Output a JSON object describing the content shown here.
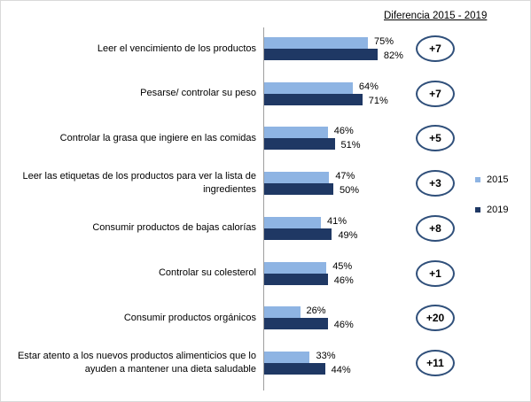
{
  "diff_header": "Diferencia 2015 - 2019",
  "colors": {
    "series_2015": "#8eb4e3",
    "series_2019": "#1f3864",
    "oval_border": "#2f4f7a"
  },
  "legend": [
    "2015",
    "2019"
  ],
  "chart_data": {
    "type": "bar",
    "orientation": "horizontal",
    "categories": [
      "Leer el vencimiento de los productos",
      "Pesarse/ controlar su peso",
      "Controlar la grasa que ingiere en las comidas",
      "Leer las etiquetas  de los productos para ver la lista de ingredientes",
      "Consumir productos de bajas calorías",
      "Controlar su colesterol",
      "Consumir  productos orgánicos",
      "Estar atento a los nuevos productos alimenticios que lo ayuden a mantener una dieta saludable"
    ],
    "series": [
      {
        "name": "2015",
        "values": [
          75,
          64,
          46,
          47,
          41,
          45,
          26,
          33
        ],
        "labels": [
          "75%",
          "64%",
          "46%",
          "47%",
          "41%",
          "45%",
          "26%",
          "33%"
        ]
      },
      {
        "name": "2019",
        "values": [
          82,
          71,
          51,
          50,
          49,
          46,
          46,
          44
        ],
        "labels": [
          "82%",
          "71%",
          "51%",
          "50%",
          "49%",
          "46%",
          "46%",
          "44%"
        ]
      }
    ],
    "differences": [
      "+7",
      "+7",
      "+5",
      "+3",
      "+8",
      "+1",
      "+20",
      "+11"
    ],
    "unit": "%",
    "legend_position": "right"
  }
}
